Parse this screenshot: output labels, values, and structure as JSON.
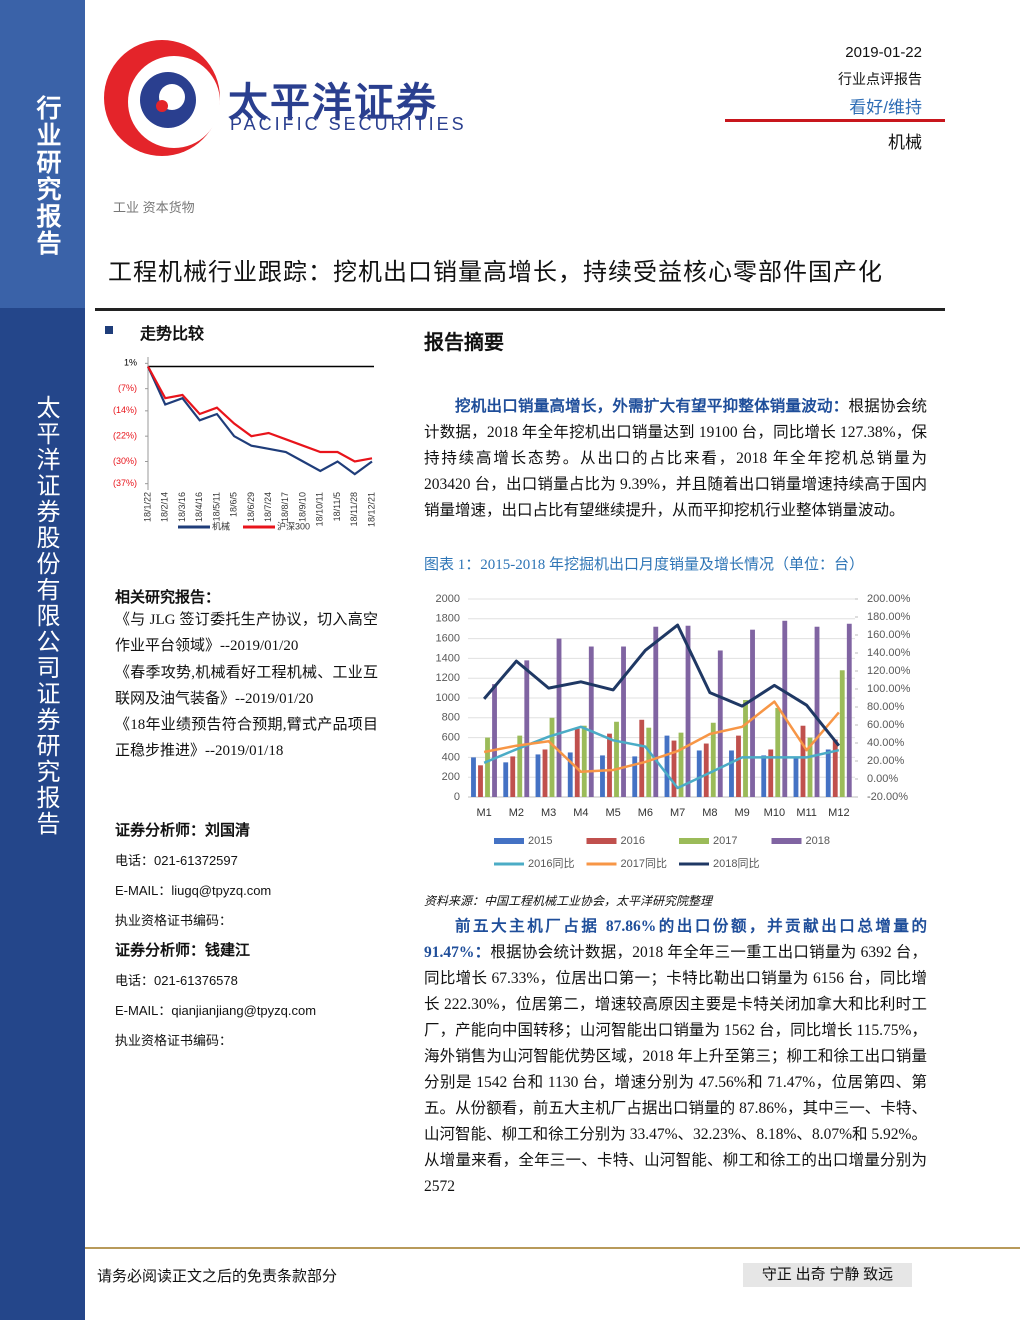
{
  "header": {
    "logo_cn": "太平洋证券",
    "logo_en": "PACIFIC SECURITIES",
    "date": "2019-01-22",
    "report_type": "行业点评报告",
    "rating": "看好/维持",
    "industry": "机械"
  },
  "sidebar": {
    "top": "行业研究报告",
    "bottom": "太平洋证券股份有限公司证券研究报告"
  },
  "category": "工业 资本货物",
  "title": "工程机械行业跟踪：挖机出口销量高增长，持续受益核心零部件国产化",
  "trend": {
    "heading": "走势比较"
  },
  "related": {
    "heading": "相关研究报告：",
    "items": [
      "《与 JLG 签订委托生产协议，切入高空作业平台领域》--2019/01/20",
      "《春季攻势,机械看好工程机械、工业互联网及油气装备》--2019/01/20",
      "《18年业绩预告符合预期,臂式产品项目正稳步推进》--2019/01/18"
    ]
  },
  "analysts": [
    {
      "name": "证券分析师：刘国清",
      "phone": "电话：021-61372597",
      "email": "E-MAIL：liugq@tpyzq.com",
      "cert": "执业资格证书编码："
    },
    {
      "name": "证券分析师：钱建江",
      "phone": "电话：021-61376578",
      "email": "E-MAIL：qianjianjiang@tpyzq.com",
      "cert": "执业资格证书编码："
    }
  ],
  "summary": {
    "heading": "报告摘要",
    "paragraphs": [
      {
        "lead": "挖机出口销量高增长，外需扩大有望平抑整体销量波动：",
        "text": "根据协会统计数据，2018 年全年挖机出口销量达到 19100 台，同比增长 127.38%，保持持续高增长态势。从出口的占比来看，2018 年全年挖机总销量为 203420 台，出口销量占比为 9.39%，并且随着出口销量增速持续高于国内销量增速，出口占比有望继续提升，从而平抑挖机行业整体销量波动。"
      },
      {
        "lead": "前五大主机厂占据 87.86%的出口份额，并贡献出口总增量的 91.47%：",
        "text": "根据协会统计数据，2018 年全年三一重工出口销量为 6392 台，同比增长 67.33%，位居出口第一；卡特比勒出口销量为 6156 台，同比增长 222.30%，位居第二，增速较高原因主要是卡特关闭加拿大和比利时工厂，产能向中国转移；山河智能出口销量为 1562 台，同比增长 115.75%，海外销售为山河智能优势区域，2018 年上升至第三；柳工和徐工出口销量分别是 1542 台和 1130 台，增速分别为 47.56%和 71.47%，位居第四、第五。从份额看，前五大主机厂占据出口销量的 87.86%，其中三一、卡特、山河智能、柳工和徐工分别为 33.47%、32.23%、8.18%、8.07%和 5.92%。从增量来看，全年三一、卡特、山河智能、柳工和徐工的出口增量分别为 2572"
      }
    ]
  },
  "footer": {
    "disclaimer": "请务必阅读正文之后的免责条款部分",
    "motto": "守正 出奇 宁静 致远"
  },
  "chart_data": [
    {
      "type": "line",
      "categories": [
        "18/1/22",
        "18/2/14",
        "18/3/16",
        "18/4/16",
        "18/5/11",
        "18/6/5",
        "18/6/29",
        "18/7/24",
        "18/8/17",
        "18/9/10",
        "18/10/11",
        "18/11/5",
        "18/11/28",
        "18/12/21"
      ],
      "series": [
        {
          "name": "机械",
          "color": "#1f3d7a",
          "values": [
            0,
            -12,
            -10,
            -17,
            -15,
            -22,
            -25,
            -26,
            -27,
            -30,
            -33,
            -30,
            -34,
            -30
          ]
        },
        {
          "name": "沪深300",
          "color": "#e8141b",
          "values": [
            0,
            -10,
            -9,
            -15,
            -13,
            -18,
            -22,
            -21,
            -23,
            -25,
            -27,
            -27,
            -30,
            -29
          ]
        }
      ],
      "ylim": [
        -39,
        3
      ],
      "yticks": [
        {
          "value": 1,
          "label": "1%"
        },
        {
          "value": -7,
          "label": "(7%)"
        },
        {
          "value": -14,
          "label": "(14%)"
        },
        {
          "value": -22,
          "label": "(22%)"
        },
        {
          "value": -30,
          "label": "(30%)"
        },
        {
          "value": -37,
          "label": "(37%)"
        }
      ]
    },
    {
      "type": "bar",
      "title": "图表 1：2015-2018 年挖掘机出口月度销量及增长情况（单位：台）",
      "source": "资料来源：中国工程机械工业协会，太平洋研究院整理",
      "categories": [
        "M1",
        "M2",
        "M3",
        "M4",
        "M5",
        "M6",
        "M7",
        "M8",
        "M9",
        "M10",
        "M11",
        "M12"
      ],
      "series": [
        {
          "name": "2015",
          "color": "#4472c4",
          "values": [
            400,
            350,
            430,
            450,
            420,
            410,
            620,
            470,
            470,
            420,
            400,
            480
          ]
        },
        {
          "name": "2016",
          "color": "#c0504d",
          "values": [
            320,
            410,
            480,
            690,
            640,
            780,
            570,
            540,
            620,
            480,
            720,
            580
          ]
        },
        {
          "name": "2017",
          "color": "#9bbb59",
          "values": [
            600,
            620,
            800,
            720,
            760,
            700,
            650,
            750,
            980,
            900,
            600,
            1280
          ]
        },
        {
          "name": "2018",
          "color": "#8064a2",
          "values": [
            1140,
            1380,
            1600,
            1520,
            1520,
            1720,
            1730,
            1480,
            1690,
            1780,
            1720,
            1750
          ]
        },
        {
          "name": "2016同比",
          "type": "line",
          "axis": "y2",
          "color": "#4bacc6",
          "values": [
            18,
            33,
            47,
            58,
            43,
            36,
            -10,
            7,
            24,
            24,
            24,
            32
          ]
        },
        {
          "name": "2017同比",
          "type": "line",
          "axis": "y2",
          "color": "#f79646",
          "values": [
            30,
            37,
            42,
            8,
            10,
            19,
            31,
            50,
            58,
            86,
            32,
            74
          ]
        },
        {
          "name": "2018同比",
          "type": "line",
          "axis": "y2",
          "color": "#1f3864",
          "values": [
            89,
            131,
            101,
            108,
            99,
            143,
            171,
            96,
            81,
            104,
            82,
            37
          ]
        }
      ],
      "ylim": [
        0,
        2000
      ],
      "yticks": [
        0,
        200,
        400,
        600,
        800,
        1000,
        1200,
        1400,
        1600,
        1800,
        2000
      ],
      "y2lim": [
        -20,
        200
      ],
      "y2ticks": [
        {
          "value": -20,
          "label": "-20.00%"
        },
        {
          "value": 0,
          "label": "0.00%"
        },
        {
          "value": 20,
          "label": "20.00%"
        },
        {
          "value": 40,
          "label": "40.00%"
        },
        {
          "value": 60,
          "label": "60.00%"
        },
        {
          "value": 80,
          "label": "80.00%"
        },
        {
          "value": 100,
          "label": "100.00%"
        },
        {
          "value": 120,
          "label": "120.00%"
        },
        {
          "value": 140,
          "label": "140.00%"
        },
        {
          "value": 160,
          "label": "160.00%"
        },
        {
          "value": 180,
          "label": "180.00%"
        },
        {
          "value": 200,
          "label": "200.00%"
        }
      ],
      "grid": true
    }
  ]
}
